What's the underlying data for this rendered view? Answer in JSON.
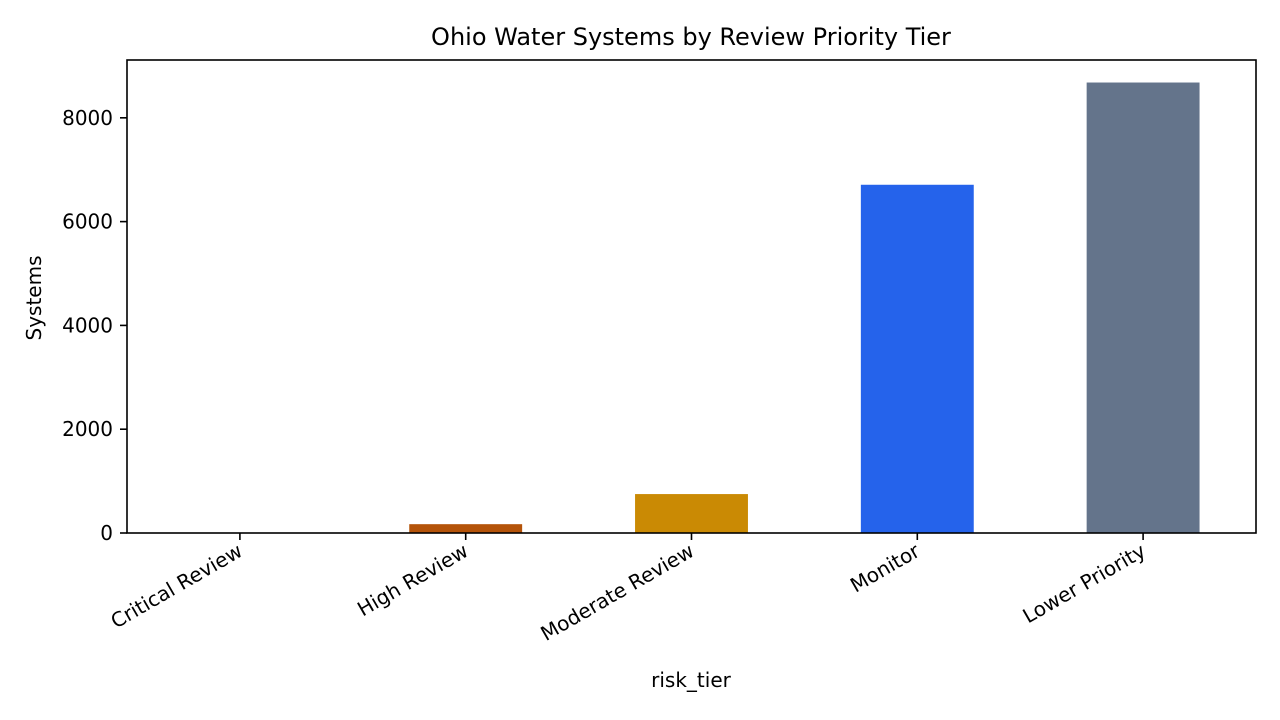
{
  "chart_data": {
    "type": "bar",
    "title": "Ohio Water Systems by Review Priority Tier",
    "xlabel": "risk_tier",
    "ylabel": "Systems",
    "categories": [
      "Critical Review",
      "High Review",
      "Moderate Review",
      "Monitor",
      "Lower Priority"
    ],
    "values": [
      3,
      170,
      750,
      6710,
      8680
    ],
    "colors": [
      "#b45309",
      "#b45309",
      "#ca8a04",
      "#2563eb",
      "#64748b"
    ],
    "ylim": [
      0,
      9114
    ],
    "yticks": [
      0,
      2000,
      4000,
      6000,
      8000
    ],
    "grid": false,
    "legend": "none"
  }
}
